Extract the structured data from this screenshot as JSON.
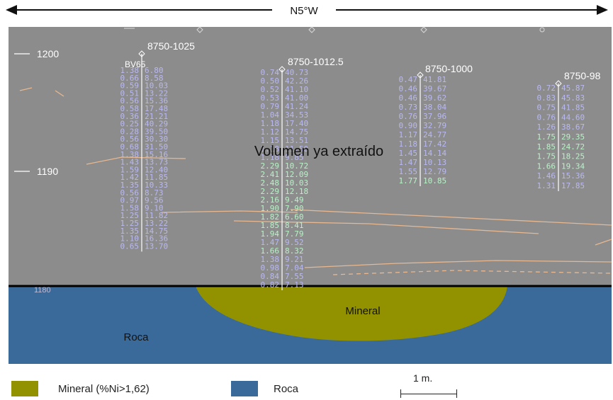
{
  "orientation": "N5°W",
  "elevations": [
    "1200",
    "1190",
    "1180"
  ],
  "region_labels": {
    "extracted": "Volumen ya extraído",
    "mineral": "Mineral",
    "rock": "Roca"
  },
  "holes": [
    {
      "name": "8750-1025",
      "secondary_label": "BV65",
      "assays": [
        [
          "1.38",
          "6.80"
        ],
        [
          "0.66",
          "8.58"
        ],
        [
          "0.59",
          "10.03"
        ],
        [
          "0.51",
          "13.22"
        ],
        [
          "0.56",
          "15.36"
        ],
        [
          "0.58",
          "17.48"
        ],
        [
          "0.36",
          "21.21"
        ],
        [
          "0.25",
          "40.29"
        ],
        [
          "0.28",
          "39.50"
        ],
        [
          "0.56",
          "30.30"
        ],
        [
          "0.68",
          "31.50"
        ],
        [
          "1.38",
          "15.16"
        ],
        [
          "1.43",
          "13.73"
        ],
        [
          "1.59",
          "12.40"
        ],
        [
          "1.42",
          "11.85"
        ],
        [
          "1.35",
          "10.33"
        ],
        [
          "0.56",
          "8.73"
        ],
        [
          "0.97",
          "9.56"
        ],
        [
          "1.58",
          "9.10"
        ],
        [
          "1.25",
          "11.82"
        ],
        [
          "1.25",
          "13.22"
        ],
        [
          "1.35",
          "14.75"
        ],
        [
          "1.10",
          "16.36"
        ],
        [
          "0.65",
          "13.70"
        ]
      ]
    },
    {
      "name": "8750-1012.5",
      "assays": [
        [
          "0.74",
          "40.73"
        ],
        [
          "0.50",
          "42.26"
        ],
        [
          "0.52",
          "41.10"
        ],
        [
          "0.53",
          "41.00"
        ],
        [
          "0.79",
          "41.24"
        ],
        [
          "1.04",
          "34.53"
        ],
        [
          "1.18",
          "17.40"
        ],
        [
          "1.12",
          "14.75"
        ],
        [
          "1.15",
          "13.51"
        ],
        [
          "1.18",
          "11.50"
        ],
        [
          "1.18",
          "9.85"
        ],
        [
          "2.29",
          "10.72"
        ],
        [
          "2.41",
          "12.09"
        ],
        [
          "2.48",
          "10.03"
        ],
        [
          "2.29",
          "12.18"
        ],
        [
          "2.16",
          "9.49"
        ],
        [
          "1.90",
          "7.90"
        ],
        [
          "1.82",
          "6.60"
        ],
        [
          "1.85",
          "8.41"
        ],
        [
          "1.94",
          "7.79"
        ],
        [
          "1.47",
          "9.52"
        ],
        [
          "1.66",
          "8.32"
        ],
        [
          "1.38",
          "9.21"
        ],
        [
          "0.98",
          "7.04"
        ],
        [
          "0.84",
          "7.55"
        ],
        [
          "0.82",
          "7.13"
        ]
      ]
    },
    {
      "name": "8750-1000",
      "assays": [
        [
          "0.47",
          "41.81"
        ],
        [
          "0.46",
          "39.67"
        ],
        [
          "0.46",
          "39.62"
        ],
        [
          "0.73",
          "38.04"
        ],
        [
          "0.76",
          "37.96"
        ],
        [
          "0.90",
          "32.79"
        ],
        [
          "1.17",
          "24.77"
        ],
        [
          "1.18",
          "17.42"
        ],
        [
          "1.45",
          "14.14"
        ],
        [
          "1.47",
          "10.13"
        ],
        [
          "1.55",
          "12.79"
        ],
        [
          "1.77",
          "10.85"
        ]
      ]
    },
    {
      "name": "8750-98",
      "assays": [
        [
          "0.72",
          "45.87"
        ],
        [
          "0.83",
          "45.83"
        ],
        [
          "0.75",
          "41.85"
        ],
        [
          "0.76",
          "44.60"
        ],
        [
          "1.26",
          "38.67"
        ],
        [
          "1.75",
          "29.35"
        ],
        [
          "1.85",
          "24.72"
        ],
        [
          "1.75",
          "18.25"
        ],
        [
          "1.66",
          "19.34"
        ],
        [
          "1.46",
          "15.36"
        ],
        [
          "1.31",
          "17.85"
        ]
      ]
    }
  ],
  "legend": {
    "mineral": {
      "label": "Mineral (%Ni>1,62)",
      "color": "#929200"
    },
    "rock": {
      "label": "Roca",
      "color": "#3a6a9a"
    }
  },
  "scale_bar": {
    "label": "1 m."
  },
  "colors": {
    "extracted_zone": "#8c8c8c",
    "rock": "#3a6a9a",
    "mineral": "#929200",
    "assay_low": "#b9b9f2",
    "assay_high": "#b8f2c8"
  }
}
